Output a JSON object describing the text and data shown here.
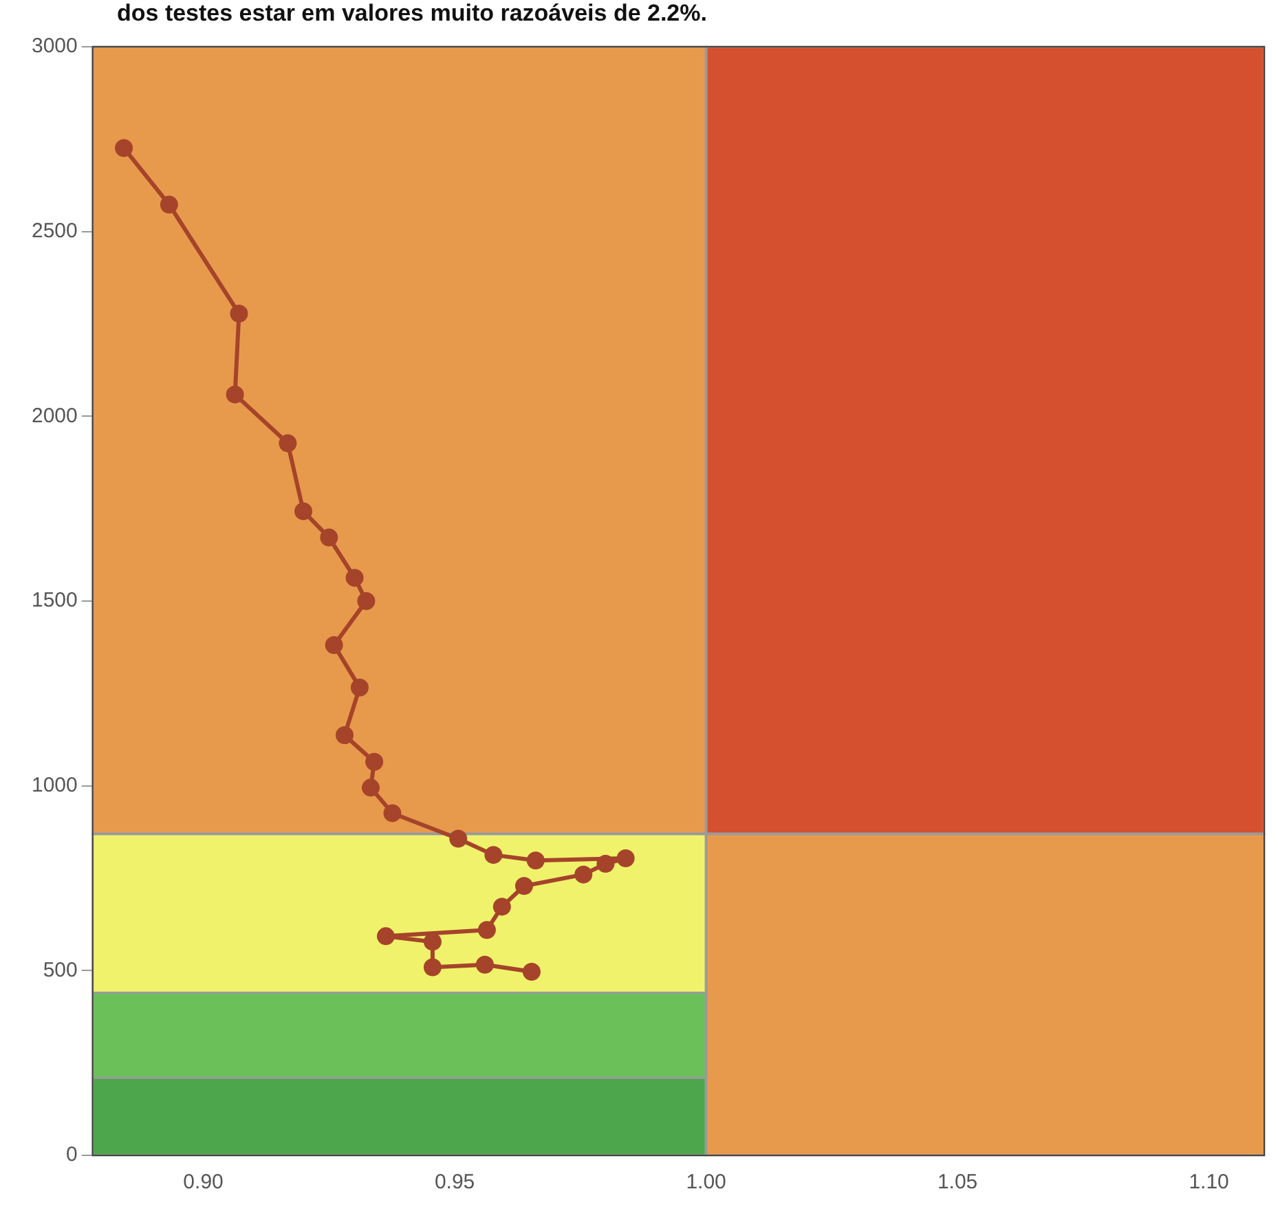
{
  "chart_data": {
    "type": "line",
    "annotations": [
      "dos testes estar em valores muito razoáveis de 2.2%."
    ],
    "x": [
      0.8842,
      0.8932,
      0.9071,
      0.9063,
      0.9168,
      0.9199,
      0.925,
      0.9301,
      0.9324,
      0.926,
      0.9311,
      0.9281,
      0.934,
      0.9333,
      0.9376,
      0.9507,
      0.9577,
      0.9661,
      0.984,
      0.98,
      0.9756,
      0.9638,
      0.9594,
      0.9564,
      0.9363,
      0.9456,
      0.9456,
      0.956,
      0.9653
    ],
    "series": [
      {
        "color": "#a5442a",
        "values": [
          2726,
          2573,
          2278,
          2059,
          1927,
          1743,
          1672,
          1563,
          1500,
          1381,
          1266,
          1137,
          1065,
          995,
          926,
          857,
          813,
          798,
          804,
          789,
          760,
          729,
          673,
          610,
          593,
          578,
          509,
          516,
          497
        ]
      }
    ],
    "xlim": [
      0.878,
      1.111
    ],
    "xticks": [
      {
        "value": 0.9,
        "label": "0.90"
      },
      {
        "value": 0.95,
        "label": "0.95"
      },
      {
        "value": 1,
        "label": "1.00"
      },
      {
        "value": 1.05,
        "label": "1.05"
      },
      {
        "value": 1.1,
        "label": "1.10"
      }
    ],
    "ylim": [
      0,
      3000
    ],
    "yticks": [
      0,
      500,
      1000,
      1500,
      2000,
      2500,
      3000
    ],
    "grid": false,
    "marker": "circle",
    "line_style": "solid",
    "bands": [
      {
        "axis": "y",
        "from": 0,
        "to": 210,
        "color": "#4ea64c"
      },
      {
        "axis": "y",
        "from": 210,
        "to": 440,
        "color": "#6cc05a"
      },
      {
        "axis": "y",
        "from": 440,
        "to": 870,
        "color": "#f0f26c"
      },
      {
        "axis": "y",
        "from": 870,
        "to": 3000,
        "color": "#e89a4c"
      },
      {
        "axis": "x",
        "from": 1.0,
        "to": 1.111,
        "color": "#e89a4c"
      },
      {
        "axis": "x",
        "from": 1.0,
        "to": 1.111,
        "color": "#d4502e"
      }
    ],
    "ref_lines": [
      {
        "axis": "x",
        "value": 1.0,
        "color": "#9a9a9a"
      },
      {
        "axis": "y",
        "value": 870,
        "color": "#9a9a9a"
      }
    ]
  }
}
